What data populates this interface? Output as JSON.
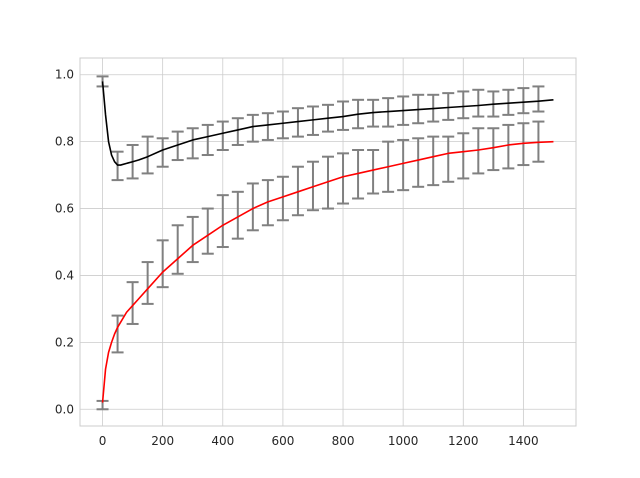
{
  "chart_data": {
    "type": "line",
    "title": "",
    "xlabel": "",
    "ylabel": "",
    "xlim": [
      -75,
      1575
    ],
    "ylim": [
      -0.05,
      1.05
    ],
    "x_ticks": [
      0,
      200,
      400,
      600,
      800,
      1000,
      1200,
      1400
    ],
    "y_ticks": [
      0.0,
      0.2,
      0.4,
      0.6,
      0.8,
      1.0
    ],
    "x_tick_labels": [
      "0",
      "200",
      "400",
      "600",
      "800",
      "1000",
      "1200",
      "1400"
    ],
    "y_tick_labels": [
      "0.0",
      "0.2",
      "0.4",
      "0.6",
      "0.8",
      "1.0"
    ],
    "grid": true,
    "legend": "none",
    "series": [
      {
        "color": "#000000",
        "x": [
          0,
          10,
          20,
          30,
          40,
          50,
          60,
          80,
          100,
          120,
          150,
          200,
          250,
          300,
          350,
          400,
          450,
          500,
          550,
          600,
          650,
          700,
          750,
          800,
          850,
          900,
          950,
          1000,
          1050,
          1100,
          1150,
          1200,
          1250,
          1300,
          1350,
          1400,
          1450,
          1500
        ],
        "y": [
          0.98,
          0.88,
          0.8,
          0.76,
          0.74,
          0.73,
          0.73,
          0.735,
          0.74,
          0.745,
          0.755,
          0.775,
          0.79,
          0.805,
          0.815,
          0.825,
          0.835,
          0.845,
          0.85,
          0.855,
          0.86,
          0.865,
          0.87,
          0.875,
          0.882,
          0.887,
          0.89,
          0.893,
          0.896,
          0.899,
          0.902,
          0.905,
          0.908,
          0.912,
          0.915,
          0.918,
          0.921,
          0.925
        ]
      },
      {
        "color": "#ff0000",
        "x": [
          0,
          10,
          20,
          30,
          40,
          50,
          60,
          80,
          100,
          120,
          150,
          200,
          250,
          300,
          350,
          400,
          450,
          500,
          550,
          600,
          650,
          700,
          750,
          800,
          850,
          900,
          950,
          1000,
          1050,
          1100,
          1150,
          1200,
          1250,
          1300,
          1350,
          1400,
          1450,
          1500
        ],
        "y": [
          0.02,
          0.12,
          0.17,
          0.2,
          0.225,
          0.245,
          0.26,
          0.29,
          0.31,
          0.33,
          0.36,
          0.41,
          0.45,
          0.49,
          0.52,
          0.55,
          0.575,
          0.6,
          0.62,
          0.635,
          0.65,
          0.665,
          0.68,
          0.695,
          0.705,
          0.715,
          0.725,
          0.735,
          0.745,
          0.755,
          0.765,
          0.77,
          0.775,
          0.782,
          0.79,
          0.795,
          0.798,
          0.8
        ]
      }
    ],
    "error_bars": {
      "color": "#808080",
      "x": [
        0,
        50,
        100,
        150,
        200,
        250,
        300,
        350,
        400,
        450,
        500,
        550,
        600,
        650,
        700,
        750,
        800,
        850,
        900,
        950,
        1000,
        1050,
        1100,
        1150,
        1200,
        1250,
        1300,
        1350,
        1400,
        1450
      ],
      "black": {
        "low": [
          0.965,
          0.685,
          0.69,
          0.705,
          0.725,
          0.745,
          0.75,
          0.76,
          0.775,
          0.79,
          0.8,
          0.805,
          0.81,
          0.815,
          0.82,
          0.83,
          0.835,
          0.84,
          0.845,
          0.845,
          0.85,
          0.855,
          0.86,
          0.865,
          0.87,
          0.875,
          0.875,
          0.88,
          0.885,
          0.89
        ],
        "high": [
          0.995,
          0.77,
          0.79,
          0.815,
          0.81,
          0.83,
          0.84,
          0.85,
          0.86,
          0.87,
          0.88,
          0.885,
          0.89,
          0.9,
          0.905,
          0.91,
          0.92,
          0.925,
          0.925,
          0.93,
          0.935,
          0.94,
          0.94,
          0.945,
          0.95,
          0.955,
          0.95,
          0.955,
          0.96,
          0.965
        ]
      },
      "red": {
        "low": [
          0.0,
          0.17,
          0.255,
          0.315,
          0.365,
          0.405,
          0.44,
          0.465,
          0.485,
          0.51,
          0.535,
          0.55,
          0.565,
          0.58,
          0.595,
          0.6,
          0.615,
          0.63,
          0.645,
          0.65,
          0.655,
          0.665,
          0.67,
          0.68,
          0.69,
          0.705,
          0.715,
          0.72,
          0.73,
          0.74
        ],
        "high": [
          0.025,
          0.28,
          0.38,
          0.44,
          0.505,
          0.55,
          0.575,
          0.6,
          0.64,
          0.65,
          0.675,
          0.685,
          0.695,
          0.725,
          0.74,
          0.755,
          0.765,
          0.775,
          0.775,
          0.8,
          0.805,
          0.81,
          0.815,
          0.815,
          0.825,
          0.84,
          0.84,
          0.85,
          0.855,
          0.86
        ]
      }
    }
  }
}
